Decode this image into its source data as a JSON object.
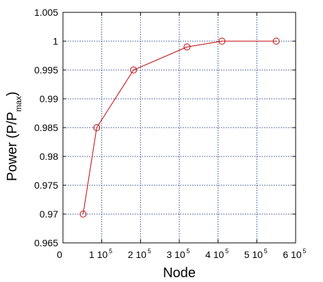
{
  "chart_data": {
    "type": "line",
    "xlabel": "Node",
    "ylabel": {
      "main": "Power (P/P",
      "subscript": "max",
      "close": ")"
    },
    "xlim": [
      0,
      600000
    ],
    "ylim": [
      0.965,
      1.005
    ],
    "grid": true,
    "x_ticks": [
      {
        "value": 0,
        "mantissa": "0",
        "exponent": ""
      },
      {
        "value": 100000,
        "mantissa": "1 10",
        "exponent": "5"
      },
      {
        "value": 200000,
        "mantissa": "2 10",
        "exponent": "5"
      },
      {
        "value": 300000,
        "mantissa": "3 10",
        "exponent": "5"
      },
      {
        "value": 400000,
        "mantissa": "4 10",
        "exponent": "5"
      },
      {
        "value": 500000,
        "mantissa": "5 10",
        "exponent": "5"
      },
      {
        "value": 600000,
        "mantissa": "6 10",
        "exponent": "5"
      }
    ],
    "y_ticks": [
      "0.965",
      "0.97",
      "0.975",
      "0.98",
      "0.985",
      "0.99",
      "0.995",
      "1",
      "1.005"
    ],
    "series": [
      {
        "color": "#c00000",
        "marker": "circle",
        "x": [
          52000,
          87000,
          182000,
          320000,
          410000,
          550000
        ],
        "y": [
          0.97,
          0.985,
          0.995,
          0.999,
          1.0,
          1.0
        ]
      }
    ]
  }
}
